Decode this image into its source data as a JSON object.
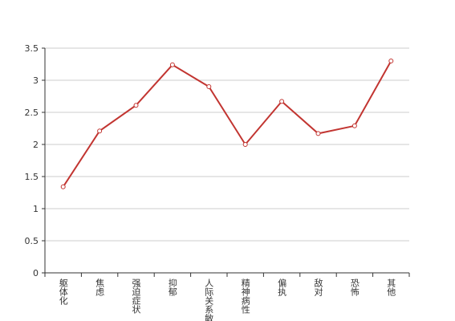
{
  "chart_data": {
    "type": "line",
    "categories": [
      "躯体化",
      "焦虑",
      "强迫症状",
      "抑郁",
      "人际关系敏感",
      "精神病性",
      "偏执",
      "敌对",
      "恐怖",
      "其他"
    ],
    "series": [
      {
        "color": "#c23531",
        "values": [
          1.34,
          2.21,
          2.61,
          3.24,
          2.9,
          2.0,
          2.67,
          2.17,
          2.29,
          3.3
        ]
      }
    ],
    "ylim": [
      0,
      3.5
    ],
    "yticks": [
      0,
      0.5,
      1,
      1.5,
      2,
      2.5,
      3,
      3.5
    ],
    "grid": true
  }
}
